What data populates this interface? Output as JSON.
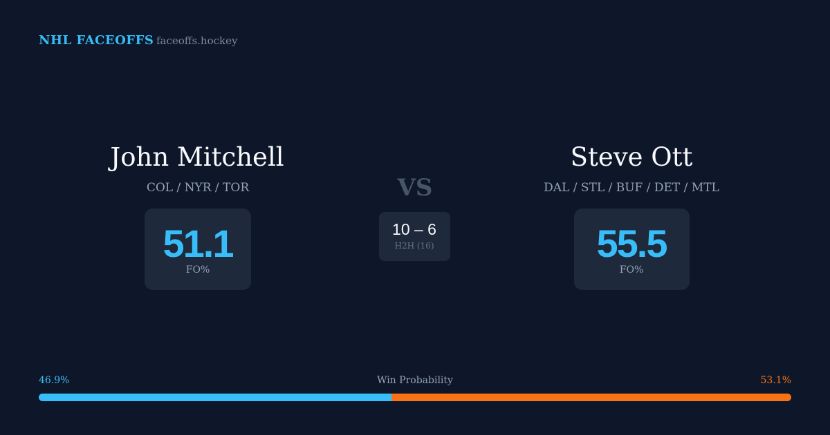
{
  "header": {
    "brand": "NHL FACEOFFS",
    "site": "faceoffs.hockey"
  },
  "players": [
    {
      "name": "John Mitchell",
      "teams": "COL / NYR / TOR",
      "fo_pct": 51.1,
      "fo_label": "FO%"
    },
    {
      "name": "Steve Ott",
      "teams": "DAL / STL / BUF / DET / MTL",
      "fo_pct": 55.5,
      "fo_label": "FO%"
    }
  ],
  "versus": "VS",
  "h2h": {
    "score": "10 – 6",
    "label": "H2H (16)"
  },
  "win_probability": {
    "title": "Win Probability",
    "values": [
      46.9,
      53.1
    ],
    "value_labels": [
      "46.9%",
      "53.1%"
    ],
    "colors": [
      "#38bdf8",
      "#f97316"
    ]
  }
}
